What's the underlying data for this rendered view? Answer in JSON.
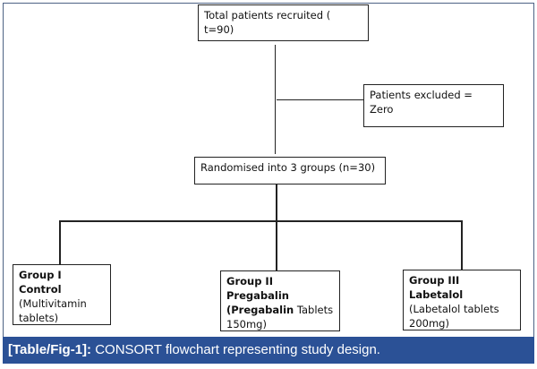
{
  "flowchart": {
    "recruited": "Total patients recruited ( t=90)",
    "excluded": "Patients excluded = Zero",
    "randomised": "Randomised into 3 groups (n=30)",
    "groups": [
      {
        "title": "Group I Control",
        "detail_bold": "",
        "detail": "(Multivitamin tablets)"
      },
      {
        "title": "Group II Pregabalin",
        "detail_bold": "(Pregabalin",
        "detail": " Tablets 150mg)"
      },
      {
        "title": "Group III Labetalol",
        "detail_bold": "",
        "detail": "(Labetalol tablets 200mg)"
      }
    ]
  },
  "caption": {
    "label": "[Table/Fig-1]:",
    "text": " CONSORT flowchart representing study design."
  },
  "colors": {
    "caption_bar": "#2b5196",
    "frame": "#4d6284"
  }
}
